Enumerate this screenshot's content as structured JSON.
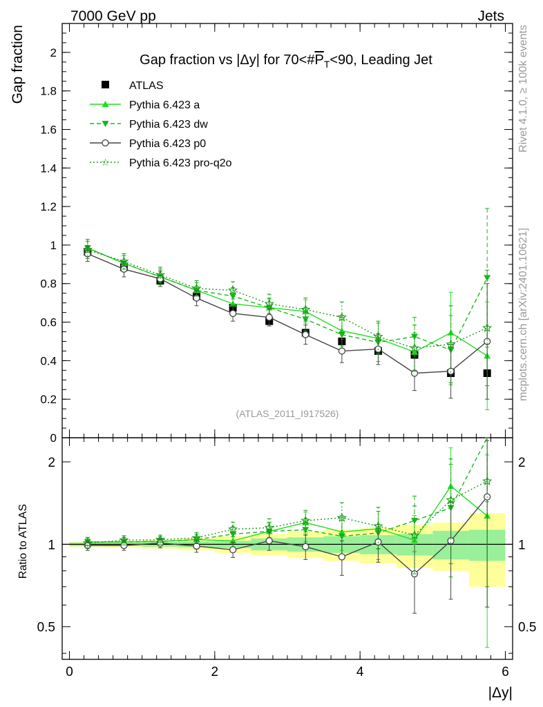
{
  "header": {
    "left": "7000 GeV pp",
    "right": "Jets"
  },
  "side_text": {
    "top": "Rivet 4.1.0, ≥ 100k events",
    "bottom": "mcplots.cern.ch [arXiv:2401.10621]"
  },
  "watermark": "(ATLAS_2011_I917526)",
  "colors": {
    "atlas": "#000000",
    "a": "#22dd22",
    "dw": "#18b818",
    "p0": "#444444",
    "proq2o": "#1a9a1a",
    "band_inner": "#99f099",
    "band_outer": "#ffff99"
  },
  "chart_data": {
    "type": "line",
    "title": "Gap fraction vs |Δy| for 70<#P̅T<90, Leading Jet",
    "title_parts": {
      "prefix": "Gap fraction vs |Δy| for 70<#",
      "p": "P",
      "sub": "T",
      "suffix": "<90, Leading Jet"
    },
    "xlabel": "|Δy|",
    "ylabel": "Gap fraction",
    "ratio_ylabel": "Ratio to ATLAS",
    "xlim": [
      -0.1,
      6.1
    ],
    "ylim": [
      0,
      2.15
    ],
    "ratio_ylim": [
      0.38,
      2.45
    ],
    "x_ticks": [
      0,
      2,
      4,
      6
    ],
    "y_ticks": [
      0,
      0.2,
      0.4,
      0.6,
      0.8,
      1,
      1.2,
      1.4,
      1.6,
      1.8,
      2
    ],
    "ratio_ticks": [
      0.5,
      1,
      2
    ],
    "x": [
      0.25,
      0.75,
      1.25,
      1.75,
      2.25,
      2.75,
      3.25,
      3.75,
      4.25,
      4.75,
      5.25,
      5.75
    ],
    "bin_edges": [
      0,
      0.5,
      1,
      1.5,
      2,
      2.5,
      3,
      3.5,
      4,
      4.5,
      5,
      5.5,
      6
    ],
    "atlas": {
      "name": "ATLAS",
      "values": [
        0.965,
        0.885,
        0.815,
        0.735,
        0.675,
        0.605,
        0.545,
        0.5,
        0.45,
        0.43,
        0.335,
        0.335
      ],
      "band_inner": [
        0.015,
        0.015,
        0.02,
        0.025,
        0.03,
        0.05,
        0.06,
        0.07,
        0.08,
        0.09,
        0.12,
        0.13
      ],
      "band_outer": [
        0.02,
        0.025,
        0.035,
        0.05,
        0.07,
        0.09,
        0.11,
        0.13,
        0.15,
        0.18,
        0.2,
        0.3
      ]
    },
    "series": [
      {
        "key": "a",
        "name": "Pythia 6.423 a",
        "style": "solid",
        "marker": "triangle-up",
        "values": [
          0.985,
          0.905,
          0.835,
          0.765,
          0.695,
          0.675,
          0.655,
          0.555,
          0.515,
          0.445,
          0.545,
          0.425
        ],
        "errors": [
          0.045,
          0.04,
          0.04,
          0.04,
          0.04,
          0.045,
          0.06,
          0.08,
          0.08,
          0.1,
          0.21,
          0.28
        ],
        "ratio": [
          1.02,
          1.02,
          1.025,
          1.04,
          1.03,
          1.115,
          1.2,
          1.11,
          1.14,
          1.035,
          1.63,
          1.27
        ],
        "ratio_errors": [
          0.04,
          0.04,
          0.04,
          0.05,
          0.06,
          0.08,
          0.11,
          0.16,
          0.18,
          0.24,
          0.62,
          0.85
        ]
      },
      {
        "key": "dw",
        "name": "Pythia 6.423 dw",
        "style": "dashed",
        "marker": "triangle-down",
        "values": [
          0.985,
          0.905,
          0.835,
          0.765,
          0.735,
          0.675,
          0.615,
          0.535,
          0.495,
          0.525,
          0.455,
          0.83
        ],
        "errors": [
          0.045,
          0.04,
          0.04,
          0.04,
          0.045,
          0.05,
          0.06,
          0.09,
          0.1,
          0.1,
          0.18,
          0.36
        ],
        "ratio": [
          1.02,
          1.02,
          1.025,
          1.04,
          1.09,
          1.115,
          1.13,
          1.07,
          1.1,
          1.22,
          1.36,
          2.48
        ],
        "ratio_errors": [
          0.04,
          0.04,
          0.04,
          0.05,
          0.07,
          0.09,
          0.11,
          0.18,
          0.22,
          0.28,
          0.6,
          1.05
        ]
      },
      {
        "key": "p0",
        "name": "Pythia 6.423 p0",
        "style": "solid",
        "marker": "circle-open",
        "values": [
          0.955,
          0.875,
          0.825,
          0.725,
          0.645,
          0.625,
          0.535,
          0.45,
          0.46,
          0.335,
          0.345,
          0.5
        ],
        "errors": [
          0.04,
          0.04,
          0.04,
          0.04,
          0.04,
          0.045,
          0.05,
          0.06,
          0.08,
          0.09,
          0.14,
          0.3
        ],
        "ratio": [
          0.99,
          0.99,
          1.01,
          0.985,
          0.955,
          1.03,
          0.98,
          0.9,
          1.02,
          0.78,
          1.03,
          1.49
        ],
        "ratio_errors": [
          0.04,
          0.04,
          0.04,
          0.05,
          0.06,
          0.08,
          0.1,
          0.13,
          0.16,
          0.22,
          0.4,
          0.9
        ]
      },
      {
        "key": "proq2o",
        "name": "Pythia 6.423 pro-q2o",
        "style": "dotted",
        "marker": "star-open",
        "values": [
          0.975,
          0.915,
          0.845,
          0.775,
          0.765,
          0.695,
          0.665,
          0.625,
          0.525,
          0.465,
          0.485,
          0.57
        ],
        "errors": [
          0.045,
          0.04,
          0.04,
          0.04,
          0.045,
          0.05,
          0.06,
          0.08,
          0.08,
          0.12,
          0.2,
          0.3
        ],
        "ratio": [
          1.01,
          1.035,
          1.04,
          1.055,
          1.135,
          1.15,
          1.22,
          1.25,
          1.165,
          1.08,
          1.45,
          1.7
        ],
        "ratio_errors": [
          0.04,
          0.04,
          0.04,
          0.05,
          0.07,
          0.09,
          0.11,
          0.17,
          0.2,
          0.3,
          0.6,
          1.0
        ]
      }
    ]
  }
}
